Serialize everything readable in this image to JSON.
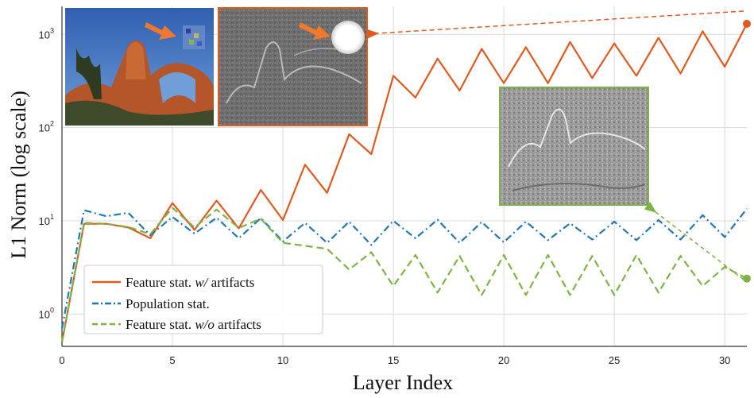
{
  "chart_data": {
    "type": "line",
    "xlabel": "Layer Index",
    "ylabel": "L1 Norm (log scale)",
    "x_ticks": [
      0,
      5,
      10,
      15,
      20,
      25,
      30
    ],
    "y_ticks": [
      {
        "value": 1,
        "base": "10",
        "exp": "0"
      },
      {
        "value": 10,
        "base": "10",
        "exp": "1"
      },
      {
        "value": 100,
        "base": "10",
        "exp": "2"
      },
      {
        "value": 1000,
        "base": "10",
        "exp": "3"
      }
    ],
    "xlim": [
      0,
      31
    ],
    "ylim": [
      0.45,
      2000
    ],
    "y_scale": "log",
    "grid": true,
    "legend_location": "lower-left",
    "x": [
      0,
      1,
      2,
      3,
      4,
      5,
      6,
      7,
      8,
      9,
      10,
      11,
      12,
      13,
      14,
      15,
      16,
      17,
      18,
      19,
      20,
      21,
      22,
      23,
      24,
      25,
      26,
      27,
      28,
      29,
      30,
      31
    ],
    "series": [
      {
        "name": "Feature stat.",
        "name_italic": "w/",
        "name_suffix": " artifacts",
        "color": "#e05a1e",
        "style": "solid",
        "values": [
          0.5,
          9.3,
          9.3,
          8.5,
          6.5,
          15.5,
          8,
          16.5,
          8.3,
          21.5,
          10.2,
          40,
          20,
          85,
          52,
          360,
          210,
          550,
          250,
          700,
          300,
          730,
          300,
          830,
          340,
          800,
          360,
          920,
          380,
          1080,
          450,
          1300
        ]
      },
      {
        "name": "Population stat.",
        "name_italic": "",
        "name_suffix": "",
        "color": "#1f77b4",
        "style": "dashdot",
        "values": [
          0.7,
          13,
          11.2,
          12.2,
          7,
          11,
          7.3,
          10.8,
          6.5,
          10.7,
          6,
          9.5,
          5.8,
          9.8,
          5.5,
          10,
          6.5,
          10.3,
          5.8,
          9.7,
          5.9,
          9.8,
          6.2,
          9.4,
          6.3,
          9.8,
          6.2,
          10.2,
          6.3,
          11.5,
          6.7,
          13.5
        ]
      },
      {
        "name": "Feature stat.",
        "name_italic": "w/o",
        "name_suffix": " artifacts",
        "color": "#7cb342",
        "style": "dashed",
        "values": [
          0.5,
          9.5,
          9.3,
          8.6,
          7.2,
          13.8,
          8.5,
          13.2,
          8.4,
          10.5,
          5.8,
          5.4,
          5,
          3,
          4.6,
          2,
          4.3,
          1.7,
          4.2,
          1.6,
          4.3,
          1.6,
          4.3,
          1.6,
          4.2,
          1.6,
          4.3,
          1.7,
          4.2,
          2,
          3.2,
          2.4
        ]
      }
    ],
    "annotations": [
      {
        "type": "inset-photo",
        "description": "photo of arches with artifact arrow"
      },
      {
        "type": "inset-featuremap",
        "linked_series": 0,
        "description": "feature map with bright artifact blob"
      },
      {
        "type": "inset-featuremap",
        "linked_series": 2,
        "description": "feature map without artifacts"
      }
    ]
  },
  "colors": {
    "grid": "#d9d9d9",
    "axis": "#333333",
    "orange": "#e05a1e",
    "blue": "#1f77b4",
    "green": "#7cb342",
    "arrow": "#f0782d"
  }
}
